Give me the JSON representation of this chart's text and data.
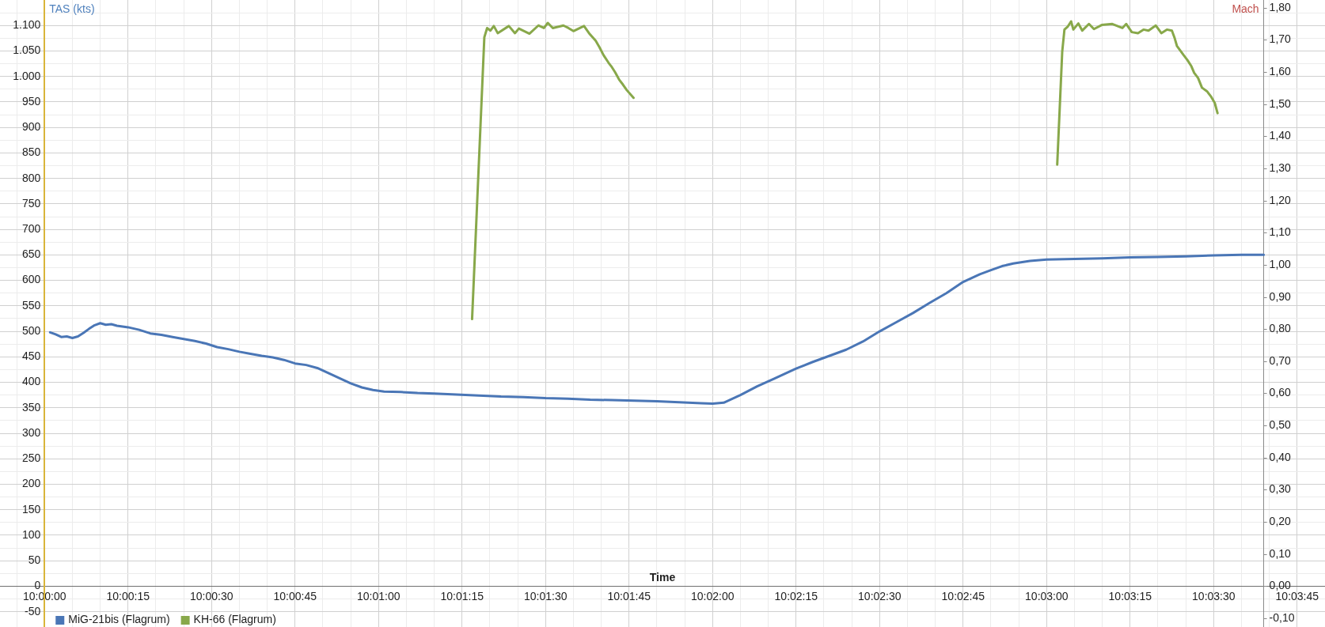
{
  "chart_data": {
    "type": "line",
    "xlabel": "Time",
    "ylabel": "TAS (kts)",
    "y2label": "Mach",
    "xlim": [
      9.997778,
      10.063889
    ],
    "xticks": [
      {
        "value": 9.998611,
        "label": null
      },
      {
        "value": 10,
        "label": "10:00:00"
      },
      {
        "value": 10.001389,
        "label": null
      },
      {
        "value": 10.002778,
        "label": null
      },
      {
        "value": 10.004167,
        "label": "10:00:15"
      },
      {
        "value": 10.005556,
        "label": null
      },
      {
        "value": 10.006944,
        "label": null
      },
      {
        "value": 10.008333,
        "label": "10:00:30"
      },
      {
        "value": 10.009722,
        "label": null
      },
      {
        "value": 10.011111,
        "label": null
      },
      {
        "value": 10.0125,
        "label": "10:00:45"
      },
      {
        "value": 10.013889,
        "label": null
      },
      {
        "value": 10.015278,
        "label": null
      },
      {
        "value": 10.016667,
        "label": "10:01:00"
      },
      {
        "value": 10.018056,
        "label": null
      },
      {
        "value": 10.019444,
        "label": null
      },
      {
        "value": 10.020833,
        "label": "10:01:15"
      },
      {
        "value": 10.022222,
        "label": null
      },
      {
        "value": 10.023611,
        "label": null
      },
      {
        "value": 10.025,
        "label": "10:01:30"
      },
      {
        "value": 10.026389,
        "label": null
      },
      {
        "value": 10.027778,
        "label": null
      },
      {
        "value": 10.029167,
        "label": "10:01:45"
      },
      {
        "value": 10.030556,
        "label": null
      },
      {
        "value": 10.031944,
        "label": null
      },
      {
        "value": 10.033333,
        "label": "10:02:00"
      },
      {
        "value": 10.034722,
        "label": null
      },
      {
        "value": 10.036111,
        "label": null
      },
      {
        "value": 10.0375,
        "label": "10:02:15"
      },
      {
        "value": 10.038889,
        "label": null
      },
      {
        "value": 10.040278,
        "label": null
      },
      {
        "value": 10.041667,
        "label": "10:02:30"
      },
      {
        "value": 10.043056,
        "label": null
      },
      {
        "value": 10.044444,
        "label": null
      },
      {
        "value": 10.045833,
        "label": "10:02:45"
      },
      {
        "value": 10.047222,
        "label": null
      },
      {
        "value": 10.048611,
        "label": null
      },
      {
        "value": 10.05,
        "label": "10:03:00"
      },
      {
        "value": 10.051389,
        "label": null
      },
      {
        "value": 10.052778,
        "label": null
      },
      {
        "value": 10.054167,
        "label": "10:03:15"
      },
      {
        "value": 10.055556,
        "label": null
      },
      {
        "value": 10.056944,
        "label": null
      },
      {
        "value": 10.058333,
        "label": "10:03:30"
      },
      {
        "value": 10.059722,
        "label": null
      },
      {
        "value": 10.061111,
        "label": null
      },
      {
        "value": 10.0625,
        "label": "10:03:45"
      }
    ],
    "ylim": [
      -80,
      1150
    ],
    "yticks": [
      -50,
      {
        "value": -25,
        "label": null
      },
      0,
      {
        "value": 25,
        "label": null
      },
      50,
      {
        "value": 75,
        "label": null
      },
      100,
      {
        "value": 125,
        "label": null
      },
      150,
      {
        "value": 175,
        "label": null
      },
      200,
      {
        "value": 225,
        "label": null
      },
      250,
      {
        "value": 275,
        "label": null
      },
      300,
      {
        "value": 325,
        "label": null
      },
      350,
      {
        "value": 375,
        "label": null
      },
      400,
      {
        "value": 425,
        "label": null
      },
      450,
      {
        "value": 475,
        "label": null
      },
      500,
      {
        "value": 525,
        "label": null
      },
      550,
      {
        "value": 575,
        "label": null
      },
      600,
      {
        "value": 625,
        "label": null
      },
      650,
      {
        "value": 675,
        "label": null
      },
      700,
      {
        "value": 725,
        "label": null
      },
      750,
      {
        "value": 775,
        "label": null
      },
      800,
      {
        "value": 825,
        "label": null
      },
      850,
      {
        "value": 875,
        "label": null
      },
      900,
      {
        "value": 925,
        "label": null
      },
      950,
      {
        "value": 975,
        "label": null
      },
      {
        "value": 1000,
        "label": "1.000"
      },
      {
        "value": 1025,
        "label": null
      },
      {
        "value": 1050,
        "label": "1.050"
      },
      {
        "value": 1075,
        "label": null
      },
      {
        "value": 1100,
        "label": "1.100"
      },
      {
        "value": 1125,
        "label": null
      }
    ],
    "y2lim": [
      -0.1269,
      1.8237
    ],
    "y2ticks": [
      {
        "value": -0.1,
        "label": "-0,10"
      },
      {
        "value": 0,
        "label": "0,00"
      },
      {
        "value": 0.1,
        "label": "0,10"
      },
      {
        "value": 0.2,
        "label": "0,20"
      },
      {
        "value": 0.3,
        "label": "0,30"
      },
      {
        "value": 0.4,
        "label": "0,40"
      },
      {
        "value": 0.5,
        "label": "0,50"
      },
      {
        "value": 0.6,
        "label": "0,60"
      },
      {
        "value": 0.7,
        "label": "0,70"
      },
      {
        "value": 0.8,
        "label": "0,80"
      },
      {
        "value": 0.9,
        "label": "0,90"
      },
      {
        "value": 1,
        "label": "1,00"
      },
      {
        "value": 1.1,
        "label": "1,10"
      },
      {
        "value": 1.2,
        "label": "1,20"
      },
      {
        "value": 1.3,
        "label": "1,30"
      },
      {
        "value": 1.4,
        "label": "1,40"
      },
      {
        "value": 1.5,
        "label": "1,50"
      },
      {
        "value": 1.6,
        "label": "1,60"
      },
      {
        "value": 1.7,
        "label": "1,70"
      },
      {
        "value": 1.8,
        "label": "1,80"
      }
    ],
    "grid": true,
    "legend": "bottom left",
    "marker": "none",
    "line_style": "solid",
    "series": [
      {
        "name": "MiG-21bis (Flagrum)",
        "color": "#4a76b6",
        "x": [
          10.000278,
          10.000556,
          10.000833,
          10.001111,
          10.001389,
          10.001667,
          10.001944,
          10.002222,
          10.0025,
          10.002778,
          10.003056,
          10.003333,
          10.003611,
          10.004167,
          10.004722,
          10.005278,
          10.005833,
          10.006389,
          10.006944,
          10.0075,
          10.008056,
          10.008611,
          10.009167,
          10.009722,
          10.010278,
          10.010833,
          10.011389,
          10.011944,
          10.0125,
          10.013056,
          10.013611,
          10.014167,
          10.014722,
          10.015278,
          10.015833,
          10.016389,
          10.016944,
          10.017778,
          10.018611,
          10.019444,
          10.020556,
          10.021667,
          10.022778,
          10.023889,
          10.025,
          10.026111,
          10.027222,
          10.028333,
          10.029444,
          10.030556,
          10.031667,
          10.032778,
          10.033333,
          10.033889,
          10.034722,
          10.035556,
          10.036389,
          10.0375,
          10.038333,
          10.039167,
          10.04,
          10.040833,
          10.041667,
          10.0425,
          10.043333,
          10.044167,
          10.045,
          10.045833,
          10.046667,
          10.047222,
          10.047778,
          10.048333,
          10.049167,
          10.05,
          10.051389,
          10.052778,
          10.054167,
          10.055556,
          10.056944,
          10.058333,
          10.059722,
          10.060833
        ],
        "values": [
          498,
          494,
          489,
          490,
          487,
          490,
          497,
          505,
          512,
          516,
          513,
          514,
          511,
          508,
          503,
          496,
          493,
          489,
          485,
          481,
          476,
          469,
          465,
          460,
          456,
          452,
          449,
          444,
          437,
          434,
          428,
          418,
          408,
          398,
          390,
          385,
          382,
          381,
          379,
          378,
          376,
          374,
          372,
          371,
          369,
          368,
          366,
          365,
          364,
          363,
          361,
          359,
          358,
          360,
          375,
          392,
          407,
          427,
          440,
          452,
          464,
          480,
          500,
          518,
          536,
          556,
          575,
          597,
          612,
          620,
          628,
          633,
          638,
          641,
          642,
          643,
          645,
          646,
          647,
          649,
          650,
          650
        ]
      },
      {
        "name": "KH-66 (Flagrum)",
        "color": "#88a84a",
        "x": [
          10.021333,
          10.021944,
          10.022083,
          10.02225,
          10.022417,
          10.022611,
          10.023167,
          10.023472,
          10.023667,
          10.024194,
          10.024639,
          10.024917,
          10.025111,
          10.025361,
          10.025889,
          10.026139,
          10.026389,
          10.026917,
          10.027167,
          10.0275,
          10.027694,
          10.027889,
          10.028139,
          10.028278,
          10.028472,
          10.028667,
          10.028861,
          10.029056,
          10.029389,
          10.04,
          10.050528,
          10.050778,
          10.050889,
          10.051056,
          10.051222,
          10.051333,
          10.051583,
          10.051778,
          10.052111,
          10.052361,
          10.05275,
          10.053278,
          10.053778,
          10.053972,
          10.05425,
          10.054556,
          10.054833,
          10.055083,
          10.055444,
          10.055722,
          10.056,
          10.05625,
          10.056389,
          10.0565,
          10.056833,
          10.057028,
          10.057222,
          10.057361,
          10.057556,
          10.05775,
          10.058,
          10.058194,
          10.058389,
          10.058528
        ],
        "values": [
          524,
          1077,
          1095,
          1090,
          1099,
          1085,
          1099,
          1085,
          1094,
          1084,
          1100,
          1095,
          1105,
          1095,
          1100,
          1095,
          1089,
          1099,
          1085,
          1070,
          1057,
          1042,
          1027,
          1020,
          1008,
          994,
          984,
          973,
          958,
          null,
          827,
          1049,
          1092,
          1098,
          1108,
          1092,
          1104,
          1090,
          1103,
          1093,
          1101,
          1103,
          1095,
          1103,
          1087,
          1085,
          1092,
          1090,
          1100,
          1085,
          1092,
          1090,
          1075,
          1060,
          1042,
          1032,
          1020,
          1007,
          997,
          978,
          971,
          961,
          948,
          928
        ]
      }
    ]
  }
}
